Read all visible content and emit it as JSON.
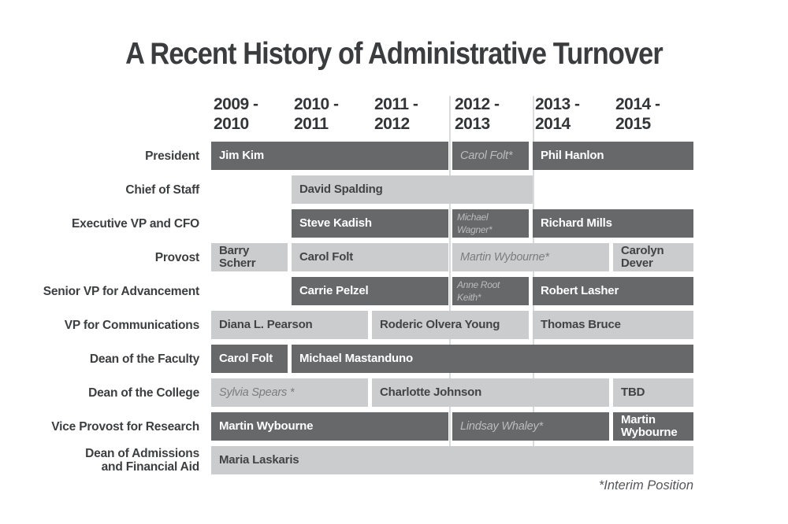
{
  "colors": {
    "page_bg": "#ffffff",
    "title_text": "#3b3c3e",
    "header_text": "#343538",
    "label_text": "#3d3e40",
    "dark_bar": "#67686a",
    "light_bar": "#cbcccd",
    "bar_text_on_dark": "#ffffff",
    "bar_text_on_light": "#424345",
    "interim_on_dark": "#bbbcbe",
    "interim_on_light": "#7b7c7f",
    "divider": "#dadbdc",
    "footnote_text": "#55565a"
  },
  "chart_data": {
    "type": "gantt",
    "title": "A Recent History of Administrative Turnover",
    "footnote": "*Interim Position",
    "legend_note": "asterisk and italic text mark interim position holders",
    "columns": [
      [
        "2009 -",
        "2010"
      ],
      [
        "2010 -",
        "2011"
      ],
      [
        "2011 -",
        "2012"
      ],
      [
        "2012 -",
        "2013"
      ],
      [
        "2013 -",
        "2014"
      ],
      [
        "2014 -",
        "2015"
      ]
    ],
    "highlighted_column_dividers": [
      "left of 2012 - 2013",
      "right of 2012 - 2013"
    ],
    "rows": [
      {
        "label_lines": [
          "President"
        ],
        "segments": [
          {
            "name": "Jim Kim",
            "years": "2009-2012",
            "col": 0,
            "span": 3,
            "shade": "dark",
            "interim": false
          },
          {
            "name": "Carol Folt*",
            "years": "2012-2013",
            "col": 3,
            "span": 1,
            "shade": "dark",
            "interim": true
          },
          {
            "name": "Phil Hanlon",
            "years": "2013-2015",
            "col": 4,
            "span": 2,
            "shade": "dark",
            "interim": false
          }
        ]
      },
      {
        "label_lines": [
          "Chief of Staff"
        ],
        "segments": [
          {
            "name": "David Spalding",
            "years": "2010-2013",
            "col": 1,
            "span": 3,
            "shade": "light",
            "interim": false
          }
        ]
      },
      {
        "label_lines": [
          "Executive VP and CFO"
        ],
        "segments": [
          {
            "name": "Steve Kadish",
            "years": "2010-2012",
            "col": 1,
            "span": 2,
            "shade": "dark",
            "interim": false
          },
          {
            "name": "Michael Wagner*",
            "years": "2012-2013",
            "col": 3,
            "span": 1,
            "shade": "dark",
            "interim": true,
            "small": true
          },
          {
            "name": "Richard Mills",
            "years": "2013-2015",
            "col": 4,
            "span": 2,
            "shade": "dark",
            "interim": false
          }
        ]
      },
      {
        "label_lines": [
          "Provost"
        ],
        "segments": [
          {
            "name": "Barry Scherr",
            "years": "2009-2010",
            "col": 0,
            "span": 1,
            "shade": "light",
            "interim": false
          },
          {
            "name": "Carol Folt",
            "years": "2010-2012",
            "col": 1,
            "span": 2,
            "shade": "light",
            "interim": false
          },
          {
            "name": "Martin Wybourne*",
            "years": "2012-2014",
            "col": 3,
            "span": 2,
            "shade": "light",
            "interim": true
          },
          {
            "name": "Carolyn Dever",
            "years": "2014-2015",
            "col": 5,
            "span": 1,
            "shade": "light",
            "interim": false
          }
        ]
      },
      {
        "label_lines": [
          "Senior VP for Advancement"
        ],
        "segments": [
          {
            "name": "Carrie Pelzel",
            "years": "2010-2012",
            "col": 1,
            "span": 2,
            "shade": "dark",
            "interim": false
          },
          {
            "name": "Anne Root Keith*",
            "years": "2012-2013",
            "col": 3,
            "span": 1,
            "shade": "dark",
            "interim": true,
            "small": true
          },
          {
            "name": "Robert Lasher",
            "years": "2013-2015",
            "col": 4,
            "span": 2,
            "shade": "dark",
            "interim": false
          }
        ]
      },
      {
        "label_lines": [
          "VP for Communications"
        ],
        "segments": [
          {
            "name": "Diana L. Pearson",
            "years": "2009-2011",
            "col": 0,
            "span": 2,
            "shade": "light",
            "interim": false
          },
          {
            "name": "Roderic Olvera Young",
            "years": "2011-2013",
            "col": 2,
            "span": 2,
            "shade": "light",
            "interim": false
          },
          {
            "name": "Thomas Bruce",
            "years": "2013-2015",
            "col": 4,
            "span": 2,
            "shade": "light",
            "interim": false
          }
        ]
      },
      {
        "label_lines": [
          "Dean of the Faculty"
        ],
        "segments": [
          {
            "name": "Carol Folt",
            "years": "2009-2010",
            "col": 0,
            "span": 1,
            "shade": "dark",
            "interim": false
          },
          {
            "name": "Michael Mastanduno",
            "years": "2010-2015",
            "col": 1,
            "span": 5,
            "shade": "dark",
            "interim": false
          }
        ]
      },
      {
        "label_lines": [
          "Dean of the College"
        ],
        "segments": [
          {
            "name": "Sylvia Spears *",
            "years": "2009-2011",
            "col": 0,
            "span": 2,
            "shade": "light",
            "interim": true
          },
          {
            "name": "Charlotte Johnson",
            "years": "2011-2014",
            "col": 2,
            "span": 3,
            "shade": "light",
            "interim": false
          },
          {
            "name": "TBD",
            "years": "2014-2015",
            "col": 5,
            "span": 1,
            "shade": "light",
            "interim": false
          }
        ]
      },
      {
        "label_lines": [
          "Vice Provost for Research"
        ],
        "segments": [
          {
            "name": "Martin Wybourne",
            "years": "2009-2012",
            "col": 0,
            "span": 3,
            "shade": "dark",
            "interim": false
          },
          {
            "name": "Lindsay Whaley*",
            "years": "2012-2014",
            "col": 3,
            "span": 2,
            "shade": "dark",
            "interim": true
          },
          {
            "name": "Martin Wybourne",
            "years": "2014-2015",
            "col": 5,
            "span": 1,
            "shade": "dark",
            "interim": false
          }
        ]
      },
      {
        "label_lines": [
          "Dean of Admissions",
          "and Financial Aid"
        ],
        "segments": [
          {
            "name": "Maria Laskaris",
            "years": "2009-2015",
            "col": 0,
            "span": 6,
            "shade": "light",
            "interim": false
          }
        ]
      }
    ]
  }
}
